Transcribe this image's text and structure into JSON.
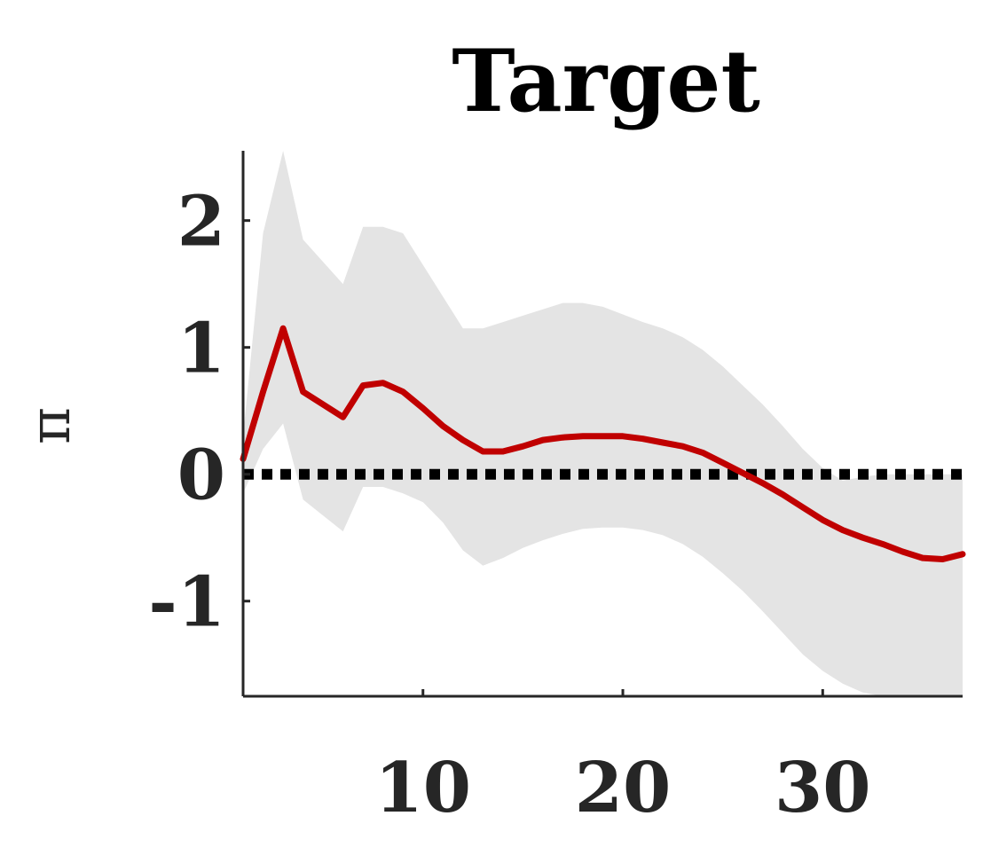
{
  "chart_data": {
    "type": "line",
    "title": "Target",
    "xlabel": "",
    "ylabel": "π",
    "xlim": [
      1,
      37
    ],
    "ylim": [
      -1.75,
      2.55
    ],
    "x_ticks": [
      10,
      20,
      30
    ],
    "x_tick_labels": [
      "10",
      "20",
      "30"
    ],
    "y_ticks": [
      2,
      1,
      0,
      -1
    ],
    "y_tick_labels": [
      "2",
      "1",
      "0",
      "-1"
    ],
    "grid": false,
    "reference_line": {
      "y": 0,
      "style": "dotted",
      "color": "#000000"
    },
    "colors": {
      "line": "#c00000",
      "band": "#e4e4e4",
      "axis": "#262626",
      "title": "#000000"
    },
    "series": [
      {
        "type": "line",
        "x": [
          1,
          2,
          3,
          4,
          6,
          7,
          8,
          9,
          10,
          11,
          12,
          13,
          14,
          15,
          16,
          17,
          18,
          19,
          20,
          21,
          22,
          23,
          24,
          25,
          26,
          27,
          28,
          29,
          30,
          31,
          32,
          33,
          34,
          35,
          36,
          37
        ],
        "values": [
          0.12,
          0.65,
          1.15,
          0.65,
          0.45,
          0.7,
          0.72,
          0.65,
          0.52,
          0.38,
          0.27,
          0.18,
          0.18,
          0.22,
          0.27,
          0.29,
          0.3,
          0.3,
          0.3,
          0.28,
          0.25,
          0.22,
          0.17,
          0.09,
          0.01,
          -0.07,
          -0.16,
          -0.26,
          -0.36,
          -0.44,
          -0.5,
          -0.55,
          -0.61,
          -0.66,
          -0.67,
          -0.63
        ]
      },
      {
        "type": "area",
        "x": [
          1,
          2,
          3,
          4,
          6,
          7,
          8,
          9,
          10,
          11,
          12,
          13,
          14,
          15,
          16,
          17,
          18,
          19,
          20,
          21,
          22,
          23,
          24,
          25,
          26,
          27,
          28,
          29,
          30,
          31,
          32,
          33,
          34,
          35,
          36,
          37
        ],
        "upper": [
          0.3,
          1.9,
          2.55,
          1.85,
          1.5,
          1.95,
          1.95,
          1.9,
          1.65,
          1.4,
          1.15,
          1.15,
          1.2,
          1.25,
          1.3,
          1.35,
          1.35,
          1.32,
          1.26,
          1.2,
          1.15,
          1.08,
          0.98,
          0.85,
          0.7,
          0.55,
          0.38,
          0.2,
          0.05,
          -0.05,
          -0.02,
          0.0,
          0.0,
          0.0,
          0.0,
          0.0
        ],
        "lower": [
          -0.15,
          0.2,
          0.4,
          -0.2,
          -0.45,
          -0.1,
          -0.1,
          -0.15,
          -0.22,
          -0.38,
          -0.6,
          -0.72,
          -0.66,
          -0.58,
          -0.52,
          -0.47,
          -0.43,
          -0.42,
          -0.42,
          -0.44,
          -0.48,
          -0.55,
          -0.65,
          -0.78,
          -0.92,
          -1.08,
          -1.25,
          -1.42,
          -1.55,
          -1.65,
          -1.72,
          -1.75,
          -1.75,
          -1.75,
          -1.75,
          -1.75
        ]
      }
    ]
  }
}
